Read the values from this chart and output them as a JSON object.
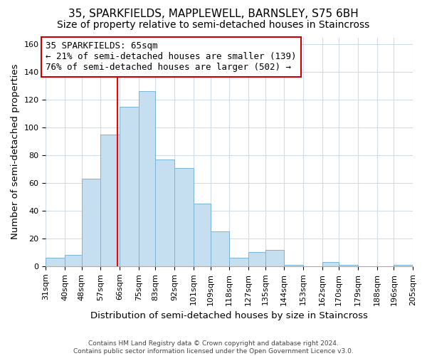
{
  "title_line1": "35, SPARKFIELDS, MAPPLEWELL, BARNSLEY, S75 6BH",
  "title_line2": "Size of property relative to semi-detached houses in Staincross",
  "xlabel": "Distribution of semi-detached houses by size in Staincross",
  "ylabel": "Number of semi-detached properties",
  "footer_line1": "Contains HM Land Registry data © Crown copyright and database right 2024.",
  "footer_line2": "Contains public sector information licensed under the Open Government Licence v3.0.",
  "annotation_title": "35 SPARKFIELDS: 65sqm",
  "annotation_line2": "← 21% of semi-detached houses are smaller (139)",
  "annotation_line3": "76% of semi-detached houses are larger (502) →",
  "bar_edges": [
    31,
    40,
    48,
    57,
    66,
    75,
    83,
    92,
    101,
    109,
    118,
    127,
    135,
    144,
    153,
    162,
    170,
    179,
    188,
    196,
    205
  ],
  "bar_heights": [
    6,
    8,
    63,
    95,
    115,
    126,
    77,
    71,
    45,
    25,
    6,
    10,
    12,
    1,
    0,
    3,
    1,
    0,
    0,
    1
  ],
  "bar_color": "#c6dff0",
  "bar_edge_color": "#7ab4d4",
  "reference_line_x": 65,
  "reference_line_color": "red",
  "annotation_box_color": "white",
  "annotation_box_edge_color": "#cc0000",
  "ylim": [
    0,
    165
  ],
  "yticks": [
    0,
    20,
    40,
    60,
    80,
    100,
    120,
    140,
    160
  ],
  "background_color": "#ffffff",
  "plot_background_color": "#ffffff",
  "grid_color": "#d0dce8",
  "title_fontsize": 11,
  "subtitle_fontsize": 10,
  "axis_label_fontsize": 9.5,
  "tick_label_fontsize": 8,
  "annotation_fontsize": 9,
  "footer_fontsize": 6.5
}
